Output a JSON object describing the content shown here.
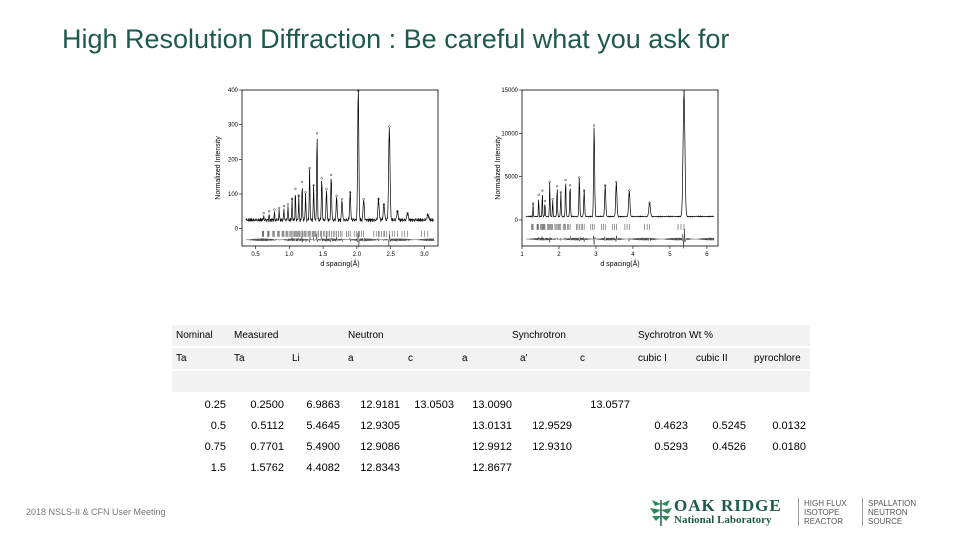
{
  "title": "High Resolution Diffraction : Be careful what you ask for",
  "footer": "2018 NSLS-II & CFN User Meeting",
  "logo": {
    "main": "OAK RIDGE",
    "sub": "National Laboratory",
    "hfir_lines": [
      "HIGH FLUX",
      "ISOTOPE",
      "REACTOR"
    ],
    "sns_lines": [
      "SPALLATION",
      "NEUTRON",
      "SOURCE"
    ],
    "color": "#1e5a4c"
  },
  "chart_data": [
    {
      "type": "line",
      "name": "neutron-pattern",
      "xlabel": "d spacing(Å)",
      "ylabel": "Normalized Intensity",
      "xlim": [
        0.3,
        3.2
      ],
      "ylim": [
        -50,
        400
      ],
      "xticks": [
        "0.5",
        "1.0",
        "1.5",
        "2.0",
        "2.5",
        "3.0"
      ],
      "yticks": [
        "0",
        "100",
        "200",
        "300",
        "400"
      ],
      "peaks": [
        {
          "d": 0.62,
          "h": 20
        },
        {
          "d": 0.7,
          "h": 25
        },
        {
          "d": 0.78,
          "h": 30
        },
        {
          "d": 0.85,
          "h": 35
        },
        {
          "d": 0.92,
          "h": 40
        },
        {
          "d": 0.98,
          "h": 45
        },
        {
          "d": 1.04,
          "h": 60
        },
        {
          "d": 1.09,
          "h": 90
        },
        {
          "d": 1.14,
          "h": 70
        },
        {
          "d": 1.19,
          "h": 110
        },
        {
          "d": 1.24,
          "h": 80
        },
        {
          "d": 1.3,
          "h": 150
        },
        {
          "d": 1.36,
          "h": 100
        },
        {
          "d": 1.41,
          "h": 250
        },
        {
          "d": 1.48,
          "h": 120
        },
        {
          "d": 1.55,
          "h": 90
        },
        {
          "d": 1.62,
          "h": 130
        },
        {
          "d": 1.7,
          "h": 70
        },
        {
          "d": 1.78,
          "h": 60
        },
        {
          "d": 1.9,
          "h": 80
        },
        {
          "d": 2.02,
          "h": 395
        },
        {
          "d": 2.1,
          "h": 60
        },
        {
          "d": 2.32,
          "h": 60
        },
        {
          "d": 2.4,
          "h": 45
        },
        {
          "d": 2.48,
          "h": 270
        },
        {
          "d": 2.6,
          "h": 25
        },
        {
          "d": 2.75,
          "h": 20
        },
        {
          "d": 3.05,
          "h": 15
        }
      ]
    },
    {
      "type": "line",
      "name": "synchrotron-pattern",
      "xlabel": "d spacing(Å)",
      "ylabel": "Normalized Intensity",
      "xlim": [
        1,
        6.3
      ],
      "ylim": [
        -3000,
        15000
      ],
      "xticks": [
        "1",
        "2",
        "3",
        "4",
        "5",
        "6"
      ],
      "yticks": [
        "0",
        "5000",
        "10000",
        "15000"
      ],
      "peaks": [
        {
          "d": 1.3,
          "h": 1500
        },
        {
          "d": 1.45,
          "h": 2500
        },
        {
          "d": 1.55,
          "h": 3000
        },
        {
          "d": 1.62,
          "h": 1800
        },
        {
          "d": 1.75,
          "h": 4000
        },
        {
          "d": 1.83,
          "h": 2000
        },
        {
          "d": 1.95,
          "h": 3500
        },
        {
          "d": 2.05,
          "h": 2800
        },
        {
          "d": 2.18,
          "h": 4200
        },
        {
          "d": 2.3,
          "h": 3600
        },
        {
          "d": 2.55,
          "h": 4500
        },
        {
          "d": 2.68,
          "h": 3000
        },
        {
          "d": 2.95,
          "h": 10500
        },
        {
          "d": 3.25,
          "h": 3600
        },
        {
          "d": 3.55,
          "h": 4000
        },
        {
          "d": 3.9,
          "h": 3000
        },
        {
          "d": 4.45,
          "h": 1600
        },
        {
          "d": 5.38,
          "h": 14500
        }
      ]
    },
    {
      "type": "table",
      "header_row1": [
        "Nominal",
        "Measured",
        "Neutron",
        "Synchrotron",
        "Sychrotron Wt %"
      ],
      "header_row2": [
        "Ta",
        "Ta",
        "Li",
        "a",
        "c",
        "a",
        "a'",
        "c",
        "cubic I",
        "cubic II",
        "pyrochlore"
      ],
      "rows": [
        [
          "0.25",
          "0.2500",
          "6.9863",
          "12.9181",
          "13.0503",
          "13.0090",
          "",
          "13.0577",
          "",
          "",
          ""
        ],
        [
          "0.5",
          "0.5112",
          "5.4645",
          "12.9305",
          "",
          "13.0131",
          "12.9529",
          "",
          "0.4623",
          "0.5245",
          "0.0132"
        ],
        [
          "0.75",
          "0.7701",
          "5.4900",
          "12.9086",
          "",
          "12.9912",
          "12.9310",
          "",
          "0.5293",
          "0.4526",
          "0.0180"
        ],
        [
          "1.5",
          "1.5762",
          "4.4082",
          "12.8343",
          "",
          "12.8677",
          "",
          "",
          "",
          "",
          ""
        ]
      ]
    }
  ]
}
